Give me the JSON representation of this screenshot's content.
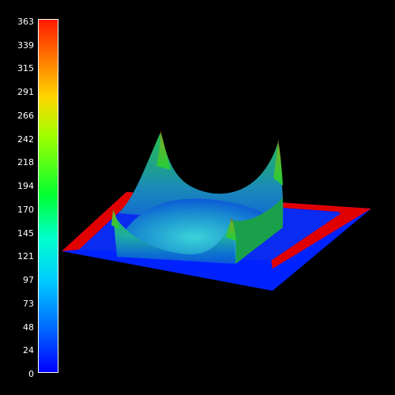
{
  "colorbar": {
    "ticks": [
      "363",
      "339",
      "315",
      "291",
      "266",
      "242",
      "218",
      "194",
      "170",
      "145",
      "121",
      "97",
      "73",
      "48",
      "24",
      "0"
    ],
    "min": 0,
    "max": 363,
    "colormap": "jet-like (blue low, red high)"
  },
  "scene": {
    "background_color": "#000000",
    "base_plate_color": "#0022ff",
    "border_strip_color": "#e10000",
    "surface_colors": [
      "#0d6fd0",
      "#1fb0c0",
      "#1fcf3a",
      "#8a5a1a"
    ]
  }
}
